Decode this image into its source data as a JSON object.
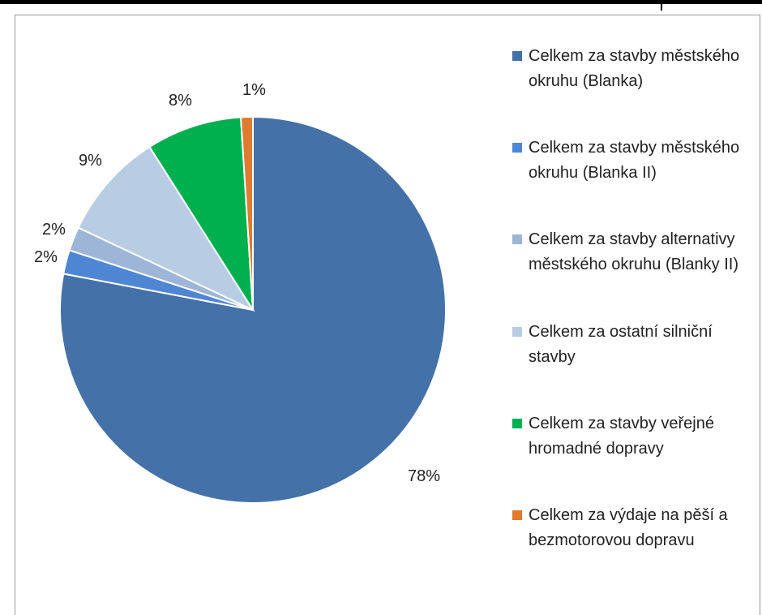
{
  "chart_data": {
    "type": "pie",
    "title": "",
    "legend_position": "right",
    "slices": [
      {
        "label": "Celkem za stavby městského okruhu (Blanka)",
        "value": 78,
        "data_label": "78%",
        "color": "#4472a8"
      },
      {
        "label": "Celkem za stavby městského okruhu (Blanka II)",
        "value": 2,
        "data_label": "2%",
        "color": "#4f86d4"
      },
      {
        "label": "Celkem za stavby alternativy městského okruhu (Blanky II)",
        "value": 2,
        "data_label": "2%",
        "color": "#9db6d8"
      },
      {
        "label": "Celkem za ostatní silniční stavby",
        "value": 9,
        "data_label": "9%",
        "color": "#b8cde4"
      },
      {
        "label": "Celkem za stavby veřejné hromadné dopravy",
        "value": 8,
        "data_label": "8%",
        "color": "#00b04f"
      },
      {
        "label": "Celkem za výdaje na pěší a bezmotorovou dopravu",
        "value": 1,
        "data_label": "1%",
        "color": "#e07a2e"
      }
    ]
  }
}
